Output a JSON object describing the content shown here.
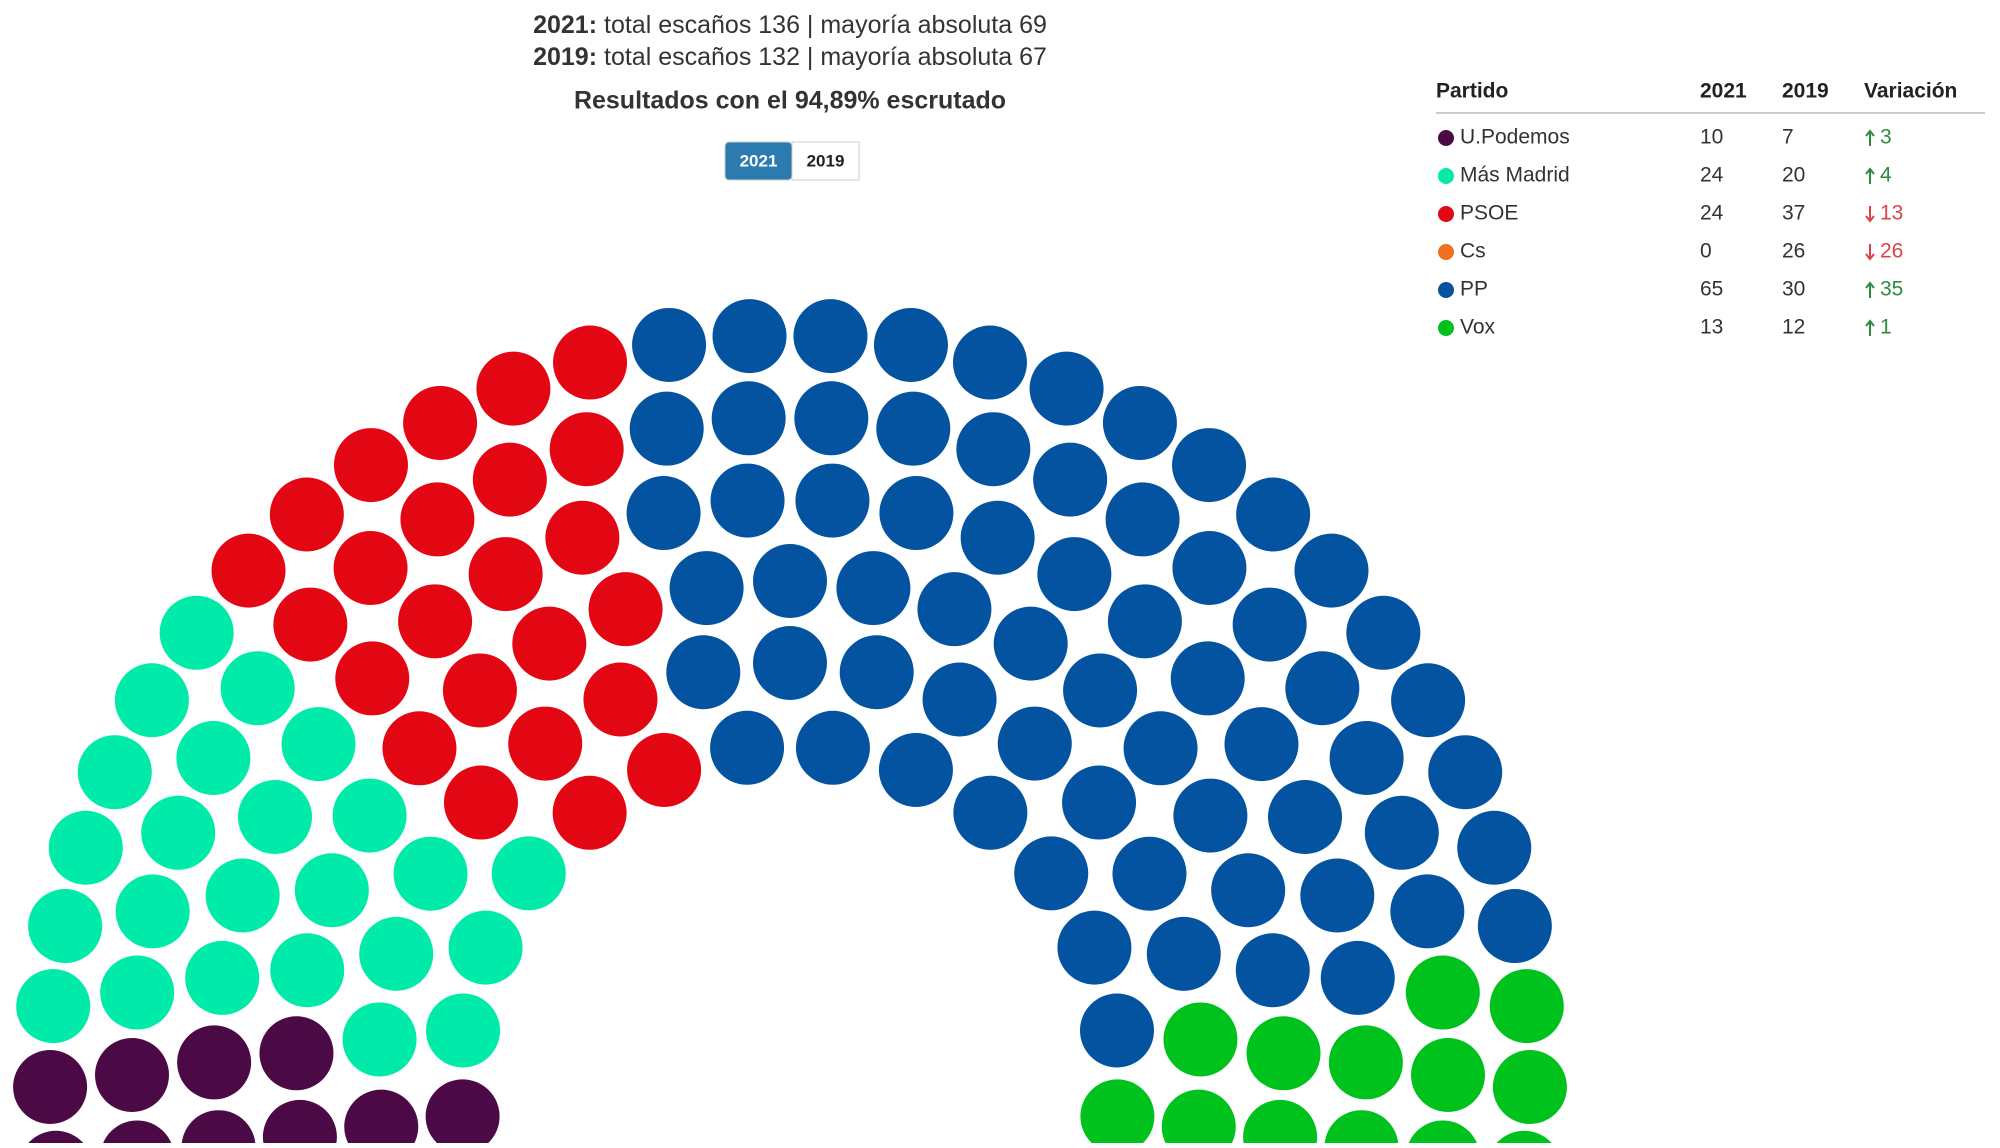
{
  "header": {
    "lines": [
      {
        "year": "2021:",
        "text": "total escaños 136 | mayoría absoluta 69"
      },
      {
        "year": "2019:",
        "text": "total escaños 132 | mayoría absoluta 67"
      }
    ],
    "subtitle": "Resultados con el 94,89% escrutado"
  },
  "buttons": [
    "2021",
    "2019"
  ],
  "active_button": 0,
  "table": {
    "columns": [
      "Partido",
      "2021",
      "2019",
      "Variación"
    ],
    "rows": [
      {
        "party": "U.Podemos",
        "color": "#4b0a45",
        "y2021": 10,
        "y2019": 7,
        "variation": 3,
        "trend": "up"
      },
      {
        "party": "Más Madrid",
        "color": "#00eaa9",
        "y2021": 24,
        "y2019": 20,
        "variation": 4,
        "trend": "up"
      },
      {
        "party": "PSOE",
        "color": "#e30613",
        "y2021": 24,
        "y2019": 37,
        "variation": 13,
        "trend": "down"
      },
      {
        "party": "Cs",
        "color": "#f07020",
        "y2021": 0,
        "y2019": 26,
        "variation": 26,
        "trend": "down"
      },
      {
        "party": "PP",
        "color": "#0453a0",
        "y2021": 65,
        "y2019": 30,
        "variation": 35,
        "trend": "up"
      },
      {
        "party": "Vox",
        "color": "#00c21c",
        "y2021": 13,
        "y2019": 12,
        "variation": 1,
        "trend": "up"
      }
    ]
  }
}
